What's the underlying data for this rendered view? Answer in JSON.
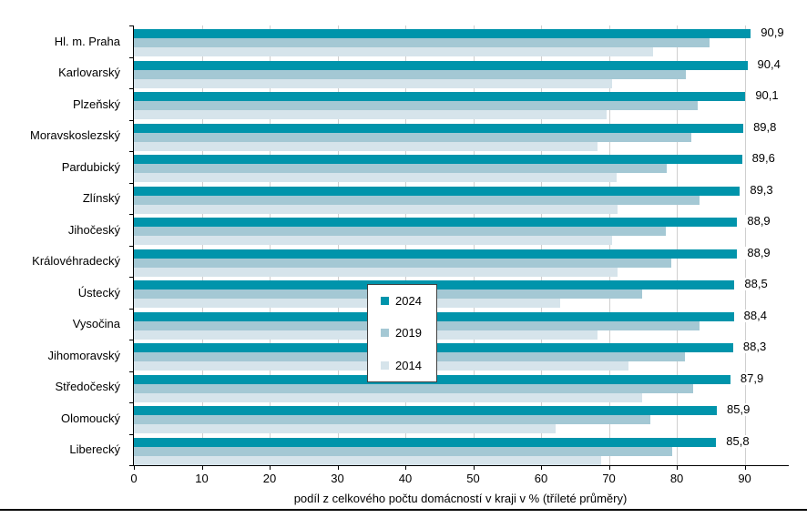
{
  "chart_data": {
    "type": "bar",
    "orientation": "horizontal",
    "categories": [
      "Hl. m. Praha",
      "Karlovarský",
      "Plzeňský",
      "Moravskoslezský",
      "Pardubický",
      "Zlínský",
      "Jihočeský",
      "Královéhradecký",
      "Ústecký",
      "Vysočina",
      "Jihomoravský",
      "Středočeský",
      "Olomoucký",
      "Liberecký"
    ],
    "series": [
      {
        "name": "2024",
        "color": "#0094ab",
        "values": [
          90.9,
          90.4,
          90.1,
          89.8,
          89.6,
          89.3,
          88.9,
          88.9,
          88.5,
          88.4,
          88.3,
          87.9,
          85.9,
          85.8
        ]
      },
      {
        "name": "2019",
        "color": "#a4c8d4",
        "values": [
          84.8,
          81.4,
          83.1,
          82.2,
          78.5,
          83.4,
          78.4,
          79.2,
          74.9,
          83.3,
          81.2,
          82.4,
          76.1,
          79.3
        ]
      },
      {
        "name": "2014",
        "color": "#d6e4eb",
        "values": [
          76.5,
          70.4,
          69.7,
          68.3,
          71.2,
          71.3,
          70.4,
          71.3,
          62.8,
          68.3,
          72.9,
          74.9,
          62.1,
          68.9
        ]
      }
    ],
    "value_labels": [
      "90,9",
      "90,4",
      "90,1",
      "89,8",
      "89,6",
      "89,3",
      "88,9",
      "88,9",
      "88,5",
      "88,4",
      "88,3",
      "87,9",
      "85,9",
      "85,8"
    ],
    "xlabel": "podíl z celkového počtu domácností v kraji v % (tříleté průměry)",
    "xlim": [
      0,
      96.5
    ],
    "xticks": [
      0,
      10,
      20,
      30,
      40,
      50,
      60,
      70,
      80,
      90
    ],
    "grid": "vertical-light-gray",
    "legend_position": "overlay-center"
  },
  "colors": {
    "grid": "#cfcfcf",
    "axis": "#000000",
    "text": "#000000",
    "legend_border": "#404040",
    "bottom_rule": "#000000"
  }
}
